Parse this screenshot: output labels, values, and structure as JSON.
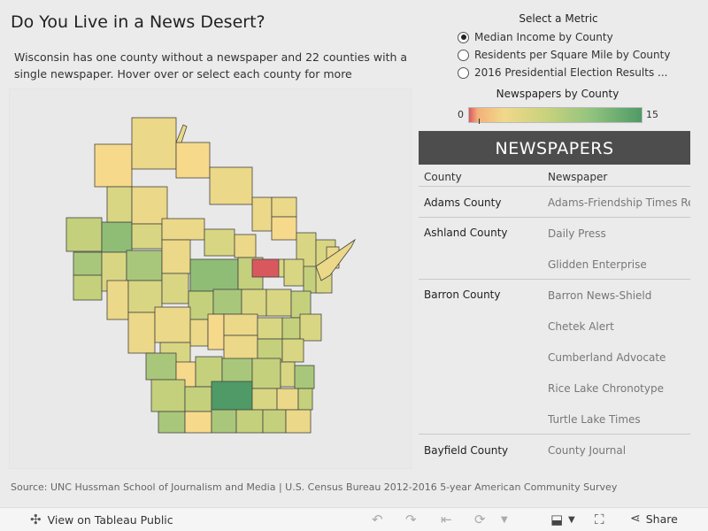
{
  "header": {
    "title": "Do You Live in a News Desert?",
    "subtitle": "Wisconsin has one county without a newspaper and 22 counties with a single newspaper. Hover over or select each county for more"
  },
  "metric_selector": {
    "title": "Select a Metric",
    "options": [
      {
        "label": "Median Income by County",
        "selected": true
      },
      {
        "label": "Residents per Square Mile by County",
        "selected": false
      },
      {
        "label": "2016 Presidential Election Results ...",
        "selected": false
      }
    ]
  },
  "legend": {
    "title": "Newspapers by County",
    "min": "0",
    "max": "15",
    "colors": {
      "low": "#d9585e",
      "mid": "#f1d88a",
      "high": "#4f9a66"
    }
  },
  "table": {
    "header": "NEWSPAPERS",
    "col_county": "County",
    "col_newspaper": "Newspaper",
    "rows": [
      {
        "county": "Adams County",
        "papers": [
          "Adams-Friendship Times Reporter"
        ]
      },
      {
        "county": "Ashland County",
        "papers": [
          "Daily Press",
          "Glidden Enterprise"
        ]
      },
      {
        "county": "Barron County",
        "papers": [
          "Barron News-Shield",
          "Chetek Alert",
          "Cumberland Advocate",
          "Rice Lake Chronotype",
          "Turtle Lake Times"
        ]
      },
      {
        "county": "Bayfield County",
        "papers": [
          "County Journal"
        ]
      }
    ]
  },
  "source": "Source: UNC Hussman School of Journalism and Media  |  U.S. Census Bureau 2012-2016 5-year American Community Survey",
  "toolbar": {
    "view_label": "View on Tableau Public",
    "share_label": "Share",
    "icons": [
      "undo-icon",
      "redo-icon",
      "revert-icon",
      "refresh-icon",
      "download-icon",
      "fullscreen-icon",
      "share-icon"
    ]
  },
  "map": {
    "name": "Wisconsin county choropleth",
    "colors": {
      "c0": "#d9585e",
      "c1": "#f7d98c",
      "c2": "#ebd888",
      "c3": "#d9d683",
      "c4": "#c4d07c",
      "c5": "#a9c77b",
      "c6": "#8fbd76",
      "c7": "#4f9a66"
    }
  }
}
